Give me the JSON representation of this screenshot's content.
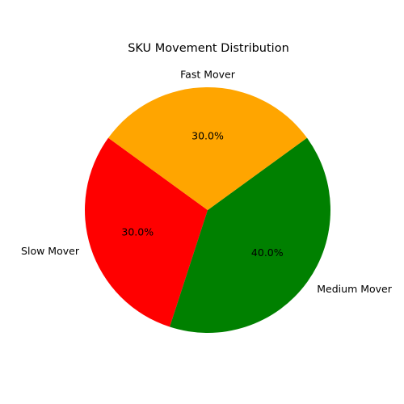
{
  "chart_data": {
    "type": "pie",
    "title": "SKU Movement Distribution",
    "start_angle_deg": 144,
    "direction": "counterclockwise",
    "legend": "none",
    "slices": [
      {
        "label": "Slow Mover",
        "value": 30,
        "pct_label": "30.0%",
        "color": "#ff0000"
      },
      {
        "label": "Medium Mover",
        "value": 40,
        "pct_label": "40.0%",
        "color": "#008000"
      },
      {
        "label": "Fast Mover",
        "value": 30,
        "pct_label": "30.0%",
        "color": "#ffa500"
      }
    ]
  }
}
